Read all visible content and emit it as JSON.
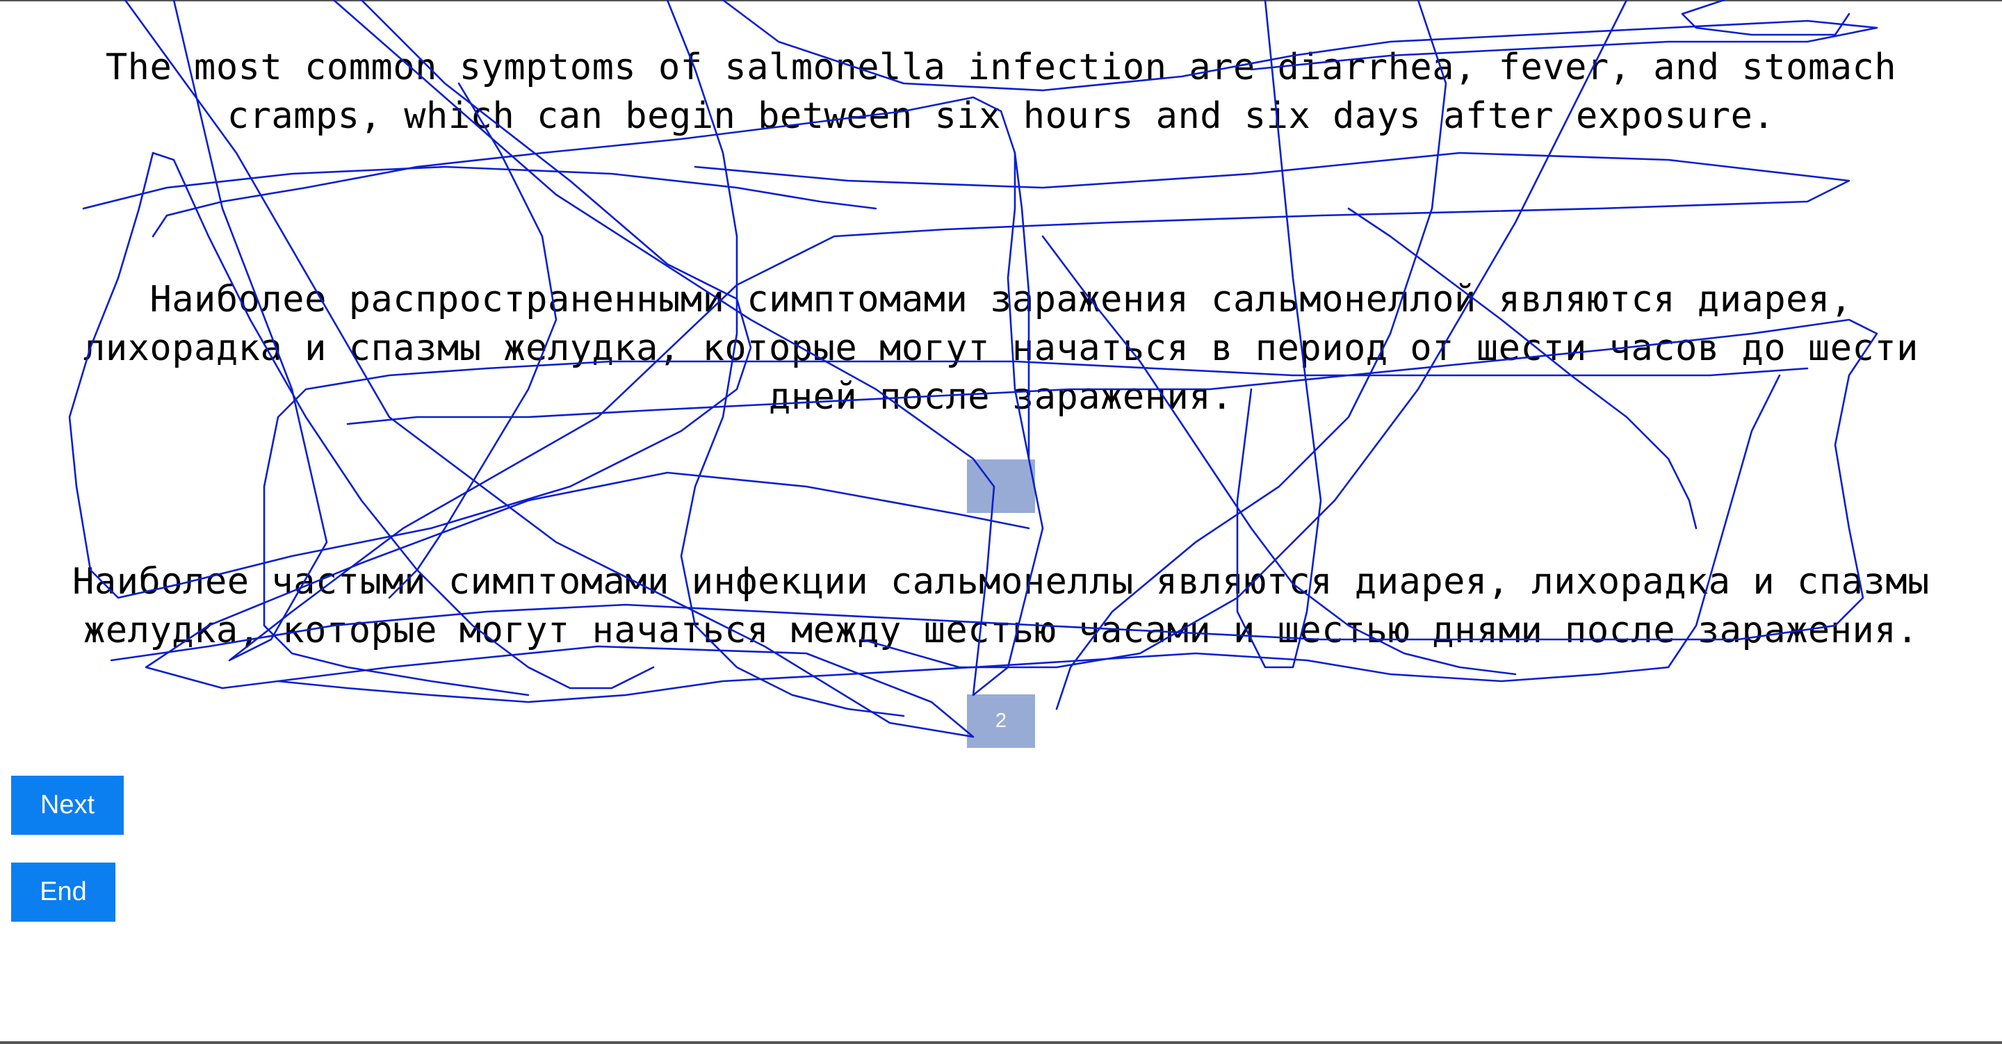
{
  "source": {
    "text": "The most common symptoms of salmonella infection are diarrhea, fever, and stomach\ncramps, which can begin between six hours and six days after exposure."
  },
  "translations": [
    {
      "text": "Наиболее распространенными симптомами заражения сальмонеллой являются диарея,\nлихорадка и спазмы желудка, которые могут начаться в период от шести часов до шести\nдней после заражения.",
      "rank": ""
    },
    {
      "text": "Наиболее частыми симптомами инфекции сальмонеллы являются диарея, лихорадка и спазмы\nжелудка, которые могут начаться между шестью часами и шестью днями после заражения.",
      "rank": "2"
    }
  ],
  "buttons": {
    "next_label": "Next",
    "end_label": "End"
  },
  "colors": {
    "button_bg": "#0b7ef0",
    "rank_box_bg": "#97abd4",
    "scribble_stroke": "#0a1fd0"
  }
}
